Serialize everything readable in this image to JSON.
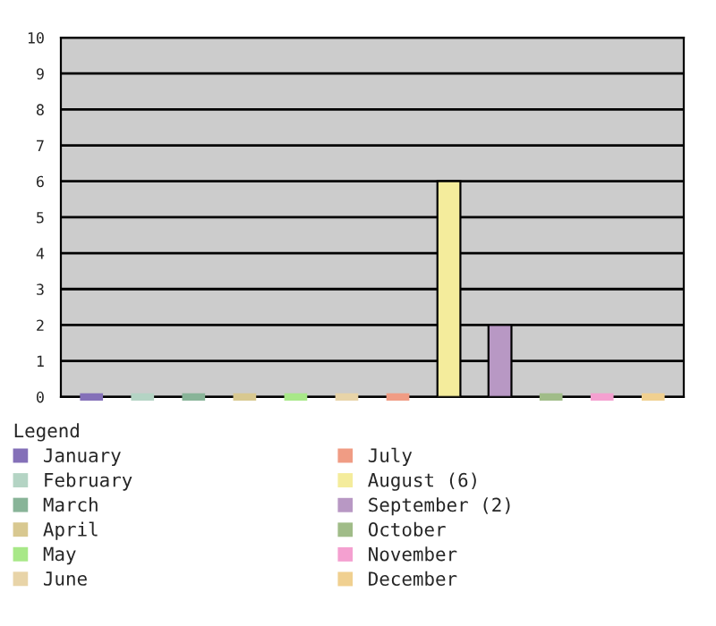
{
  "chart_data": {
    "type": "bar",
    "legend_title": "Legend",
    "legend": "bottom",
    "grid": "y",
    "categories": [
      null,
      null,
      null,
      null,
      null,
      null,
      null,
      null,
      null,
      null,
      null,
      null
    ],
    "ylim": [
      0,
      10
    ],
    "yticks": [
      0,
      1,
      2,
      3,
      4,
      5,
      6,
      7,
      8,
      9,
      10
    ],
    "series": [
      {
        "name": "January",
        "color": "#8470b8",
        "values": [
          0,
          null,
          null,
          null,
          null,
          null,
          null,
          null,
          null,
          null,
          null,
          null
        ]
      },
      {
        "name": "February",
        "color": "#b4d4c4",
        "values": [
          null,
          0,
          null,
          null,
          null,
          null,
          null,
          null,
          null,
          null,
          null,
          null
        ]
      },
      {
        "name": "March",
        "color": "#88b498",
        "values": [
          null,
          null,
          0,
          null,
          null,
          null,
          null,
          null,
          null,
          null,
          null,
          null
        ]
      },
      {
        "name": "April",
        "color": "#d8c890",
        "values": [
          null,
          null,
          null,
          0,
          null,
          null,
          null,
          null,
          null,
          null,
          null,
          null
        ]
      },
      {
        "name": "May",
        "color": "#a8e888",
        "values": [
          null,
          null,
          null,
          null,
          0,
          null,
          null,
          null,
          null,
          null,
          null,
          null
        ]
      },
      {
        "name": "June",
        "color": "#e8d4a8",
        "values": [
          null,
          null,
          null,
          null,
          null,
          0,
          null,
          null,
          null,
          null,
          null,
          null
        ]
      },
      {
        "name": "July",
        "color": "#f09c84",
        "values": [
          null,
          null,
          null,
          null,
          null,
          null,
          0,
          null,
          null,
          null,
          null,
          null
        ]
      },
      {
        "name": "August (6)",
        "color": "#f4ec9c",
        "values": [
          null,
          null,
          null,
          null,
          null,
          null,
          null,
          6,
          null,
          null,
          null,
          null
        ]
      },
      {
        "name": "September (2)",
        "color": "#b898c4",
        "values": [
          null,
          null,
          null,
          null,
          null,
          null,
          null,
          null,
          2,
          null,
          null,
          null
        ]
      },
      {
        "name": "October",
        "color": "#a0bc88",
        "values": [
          null,
          null,
          null,
          null,
          null,
          null,
          null,
          null,
          null,
          0,
          null,
          null
        ]
      },
      {
        "name": "November",
        "color": "#f4a0d0",
        "values": [
          null,
          null,
          null,
          null,
          null,
          null,
          null,
          null,
          null,
          null,
          0,
          null
        ]
      },
      {
        "name": "December",
        "color": "#f0d090",
        "values": [
          null,
          null,
          null,
          null,
          null,
          null,
          null,
          null,
          null,
          null,
          null,
          0
        ]
      }
    ]
  }
}
